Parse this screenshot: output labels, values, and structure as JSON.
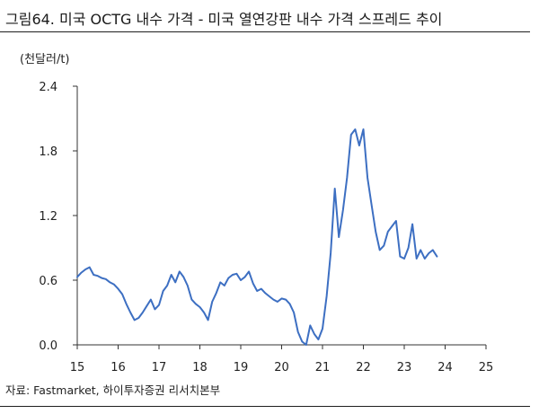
{
  "title": "그림64. 미국 OCTG 내수 가격  - 미국 열연강판 내수 가격 스프레드 추이",
  "source": "자료: Fastmarket, 하이투자증권 리서치본부",
  "chart_data": {
    "type": "line",
    "ylabel": "(천달러/t)",
    "xlabel": "",
    "ylim": [
      0,
      2.4
    ],
    "yticks": [
      "0.0",
      "0.6",
      "1.2",
      "1.8",
      "2.4"
    ],
    "xlim": [
      15,
      25
    ],
    "xticks": [
      "15",
      "16",
      "17",
      "18",
      "19",
      "20",
      "21",
      "22",
      "23",
      "24",
      "25"
    ],
    "grid": false,
    "legend": "none",
    "line_color": "#3d6fc2",
    "series": [
      {
        "x": [
          15.0,
          15.1,
          15.2,
          15.3,
          15.4,
          15.5,
          15.6,
          15.7,
          15.8,
          15.9,
          16.0,
          16.1,
          16.2,
          16.3,
          16.4,
          16.5,
          16.6,
          16.7,
          16.8,
          16.9,
          17.0,
          17.1,
          17.2,
          17.3,
          17.4,
          17.5,
          17.6,
          17.7,
          17.8,
          17.9,
          18.0,
          18.1,
          18.2,
          18.3,
          18.4,
          18.5,
          18.6,
          18.7,
          18.8,
          18.9,
          19.0,
          19.1,
          19.2,
          19.3,
          19.4,
          19.5,
          19.6,
          19.7,
          19.8,
          19.9,
          20.0,
          20.1,
          20.2,
          20.3,
          20.4,
          20.5,
          20.6,
          20.7,
          20.8,
          20.9,
          21.0,
          21.1,
          21.2,
          21.3,
          21.4,
          21.5,
          21.6,
          21.7,
          21.8,
          21.9,
          22.0,
          22.1,
          22.2,
          22.3,
          22.4,
          22.5,
          22.6,
          22.7,
          22.8,
          22.9,
          23.0,
          23.1,
          23.2,
          23.3,
          23.4,
          23.5,
          23.6,
          23.7,
          23.8
        ],
        "y": [
          0.63,
          0.67,
          0.7,
          0.72,
          0.65,
          0.64,
          0.62,
          0.61,
          0.58,
          0.56,
          0.52,
          0.47,
          0.38,
          0.3,
          0.23,
          0.25,
          0.3,
          0.36,
          0.42,
          0.33,
          0.37,
          0.5,
          0.55,
          0.65,
          0.58,
          0.68,
          0.63,
          0.55,
          0.42,
          0.38,
          0.35,
          0.3,
          0.23,
          0.4,
          0.48,
          0.58,
          0.55,
          0.62,
          0.65,
          0.66,
          0.6,
          0.63,
          0.68,
          0.57,
          0.5,
          0.52,
          0.48,
          0.45,
          0.42,
          0.4,
          0.43,
          0.42,
          0.38,
          0.3,
          0.12,
          0.03,
          0.0,
          0.18,
          0.1,
          0.05,
          0.15,
          0.45,
          0.85,
          1.45,
          1.0,
          1.25,
          1.55,
          1.95,
          2.0,
          1.85,
          2.0,
          1.55,
          1.3,
          1.05,
          0.88,
          0.92,
          1.05,
          1.1,
          1.15,
          0.82,
          0.8,
          0.9,
          1.12,
          0.8,
          0.88,
          0.8,
          0.85,
          0.88,
          0.82
        ]
      }
    ]
  }
}
